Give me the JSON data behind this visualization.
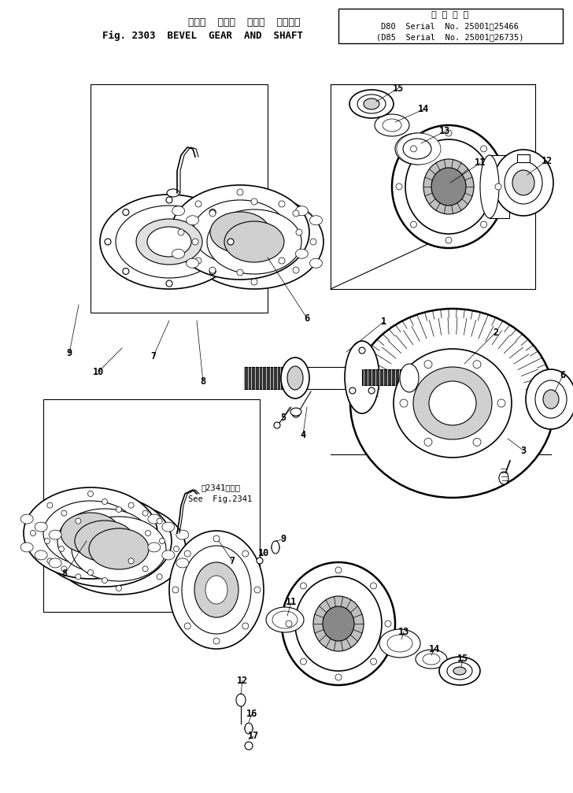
{
  "title_line1": "ベベル  ギヤー  および  シャフト",
  "title_line2": "Fig. 2303  BEVEL  GEAR  AND  SHAFT",
  "serial_line1": "D80  Serial  No. 25001～25466",
  "serial_line2": "(D85  Serial  No. 25001～26735)",
  "title_box_label": "適 用 号 機",
  "see_ref_line1": "第2341図参照",
  "see_ref_line2": "See  Fig.2341",
  "bg_color": "#ffffff",
  "line_color": "#000000",
  "fig_width": 7.28,
  "fig_height": 10.07,
  "dpi": 100
}
